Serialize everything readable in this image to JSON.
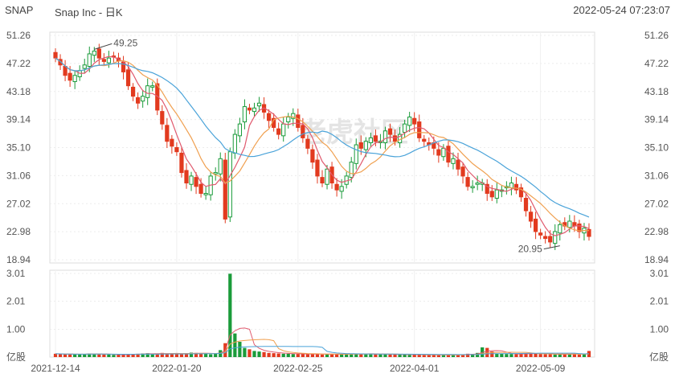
{
  "header": {
    "ticker": "SNAP",
    "name": "Snap Inc - 日K",
    "timestamp": "2022-05-24 07:23:07"
  },
  "chart_data": {
    "type": "candlestick",
    "price_axis": {
      "ticks": [
        "51.26",
        "47.22",
        "43.18",
        "39.14",
        "35.10",
        "31.06",
        "27.02",
        "22.98",
        "18.94"
      ],
      "ylim": [
        18.94,
        51.26
      ]
    },
    "volume_axis": {
      "ticks": [
        "3.01",
        "2.01",
        "1.00",
        "亿股"
      ],
      "unit": "亿股",
      "ylim": [
        0,
        3.01
      ]
    },
    "x_ticks": [
      {
        "label": "2021-12-14",
        "index": 0
      },
      {
        "label": "2022-01-20",
        "index": 25
      },
      {
        "label": "2022-02-25",
        "index": 50
      },
      {
        "label": "2022-04-01",
        "index": 74
      },
      {
        "label": "2022-05-09",
        "index": 100
      }
    ],
    "annotations": [
      {
        "label": "49.25",
        "index": 8,
        "value": 49.25
      },
      {
        "label": "20.95",
        "index": 104,
        "value": 20.95
      }
    ],
    "colors": {
      "up": "#1a9b3a",
      "down": "#e23a1f",
      "ma_short": "#e05a6e",
      "ma_mid": "#f0a050",
      "ma_long": "#4aa3d9"
    },
    "watermark": "老虎社区",
    "close": [
      48.0,
      47.0,
      45.5,
      44.8,
      45.5,
      46.2,
      47.0,
      48.6,
      49.0,
      48.0,
      47.5,
      48.0,
      48.2,
      47.6,
      46.0,
      44.0,
      42.5,
      41.5,
      42.5,
      44.0,
      44.0,
      40.5,
      38.5,
      36.0,
      35.3,
      34.5,
      31.5,
      30.0,
      31.0,
      29.5,
      28.5,
      28.5,
      31.0,
      31.5,
      33.5,
      24.8,
      34.5,
      37.0,
      38.5,
      41.0,
      40.5,
      40.8,
      41.5,
      40.2,
      39.0,
      38.0,
      37.0,
      38.5,
      39.5,
      40.0,
      38.0,
      36.5,
      35.0,
      33.0,
      31.0,
      30.0,
      32.0,
      30.0,
      29.0,
      29.5,
      31.0,
      33.0,
      35.5,
      35.0,
      36.0,
      36.5,
      36.0,
      36.0,
      37.5,
      37.0,
      36.0,
      37.0,
      38.5,
      39.5,
      38.5,
      36.5,
      36.0,
      35.5,
      35.0,
      34.0,
      35.0,
      33.0,
      33.5,
      32.0,
      31.0,
      29.5,
      29.5,
      30.0,
      30.0,
      28.5,
      28.0,
      29.0,
      29.0,
      29.5,
      30.0,
      29.0,
      28.0,
      26.0,
      24.5,
      23.0,
      22.5,
      22.0,
      21.5,
      23.0,
      24.0,
      23.8,
      24.5,
      23.8,
      23.0,
      23.5,
      22.3
    ],
    "volume": [
      0.12,
      0.11,
      0.1,
      0.1,
      0.09,
      0.1,
      0.11,
      0.13,
      0.12,
      0.1,
      0.09,
      0.09,
      0.08,
      0.09,
      0.09,
      0.1,
      0.11,
      0.12,
      0.13,
      0.14,
      0.1,
      0.12,
      0.15,
      0.13,
      0.14,
      0.12,
      0.1,
      0.14,
      0.16,
      0.15,
      0.13,
      0.12,
      0.1,
      0.13,
      0.25,
      0.5,
      3.0,
      0.85,
      0.55,
      0.33,
      0.28,
      0.22,
      0.2,
      0.18,
      0.15,
      0.14,
      0.13,
      0.12,
      0.12,
      0.11,
      0.11,
      0.12,
      0.1,
      0.11,
      0.12,
      0.09,
      0.1,
      0.11,
      0.1,
      0.1,
      0.1,
      0.12,
      0.13,
      0.12,
      0.1,
      0.12,
      0.11,
      0.1,
      0.1,
      0.09,
      0.09,
      0.09,
      0.1,
      0.08,
      0.09,
      0.08,
      0.07,
      0.08,
      0.09,
      0.07,
      0.08,
      0.08,
      0.09,
      0.08,
      0.1,
      0.12,
      0.11,
      0.15,
      0.35,
      0.33,
      0.2,
      0.13,
      0.12,
      0.11,
      0.11,
      0.1,
      0.12,
      0.14,
      0.15,
      0.12,
      0.11,
      0.1,
      0.1,
      0.09,
      0.1,
      0.11,
      0.11,
      0.12,
      0.09,
      0.1,
      0.22
    ]
  }
}
